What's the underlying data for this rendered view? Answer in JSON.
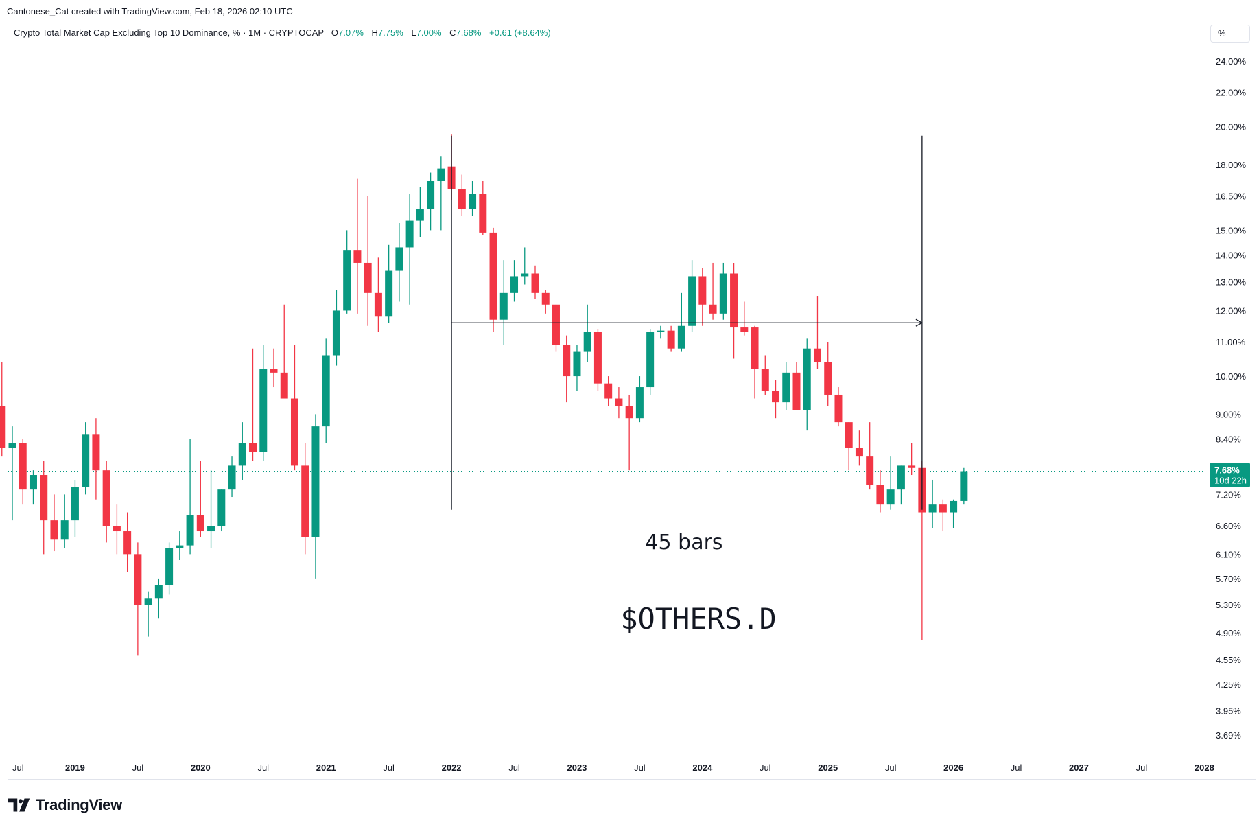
{
  "credit": "Cantonese_Cat created with TradingView.com, Feb 18, 2026 02:10 UTC",
  "legend": {
    "symbol": "Crypto Total Market Cap Excluding Top 10 Dominance, % · 1M · CRYPTOCAP",
    "open_label": "O",
    "open": "7.07%",
    "high_label": "H",
    "high": "7.75%",
    "low_label": "L",
    "low": "7.00%",
    "close_label": "C",
    "close": "7.68%",
    "change": "+0.61 (+8.64%)"
  },
  "unit_badge": "%",
  "brand": "TradingView",
  "colors": {
    "up": "#089981",
    "down": "#F23645",
    "text": "#131722",
    "grid": "#e0e3eb"
  },
  "chart_data": {
    "type": "candlestick",
    "interval": "1M",
    "y_scale": "log",
    "y_ticks": [
      "24.00%",
      "22.00%",
      "20.00%",
      "18.00%",
      "16.50%",
      "15.00%",
      "14.00%",
      "13.00%",
      "12.00%",
      "11.00%",
      "10.00%",
      "9.00%",
      "8.40%",
      "7.80%",
      "7.20%",
      "6.60%",
      "6.10%",
      "5.70%",
      "5.30%",
      "4.90%",
      "4.55%",
      "4.25%",
      "3.95%",
      "3.69%"
    ],
    "x_ticks": [
      {
        "label": "Jul",
        "date": "2018-07"
      },
      {
        "label": "2019",
        "date": "2019-01"
      },
      {
        "label": "Jul",
        "date": "2019-07"
      },
      {
        "label": "2020",
        "date": "2020-01"
      },
      {
        "label": "Jul",
        "date": "2020-07"
      },
      {
        "label": "2021",
        "date": "2021-01"
      },
      {
        "label": "Jul",
        "date": "2021-07"
      },
      {
        "label": "2022",
        "date": "2022-01"
      },
      {
        "label": "Jul",
        "date": "2022-07"
      },
      {
        "label": "2023",
        "date": "2023-01"
      },
      {
        "label": "Jul",
        "date": "2023-07"
      },
      {
        "label": "2024",
        "date": "2024-01"
      },
      {
        "label": "Jul",
        "date": "2024-07"
      },
      {
        "label": "2025",
        "date": "2025-01"
      },
      {
        "label": "Jul",
        "date": "2025-07"
      },
      {
        "label": "2026",
        "date": "2026-01"
      },
      {
        "label": "Jul",
        "date": "2026-07"
      },
      {
        "label": "2027",
        "date": "2027-01"
      },
      {
        "label": "Jul",
        "date": "2027-07"
      },
      {
        "label": "2028",
        "date": "2028-01"
      }
    ],
    "last_price": {
      "value": 7.68,
      "label": "7.68%",
      "countdown": "10d 22h"
    },
    "measure": {
      "from": "2022-01",
      "to": "2025-10",
      "level": 11.6,
      "top": 19.5,
      "bottom": 6.9,
      "label": "45 bars"
    },
    "annotation": "$OTHERS.D",
    "candles": [
      {
        "d": "2018-06",
        "o": 9.2,
        "h": 10.4,
        "l": 8.0,
        "c": 8.2
      },
      {
        "d": "2018-07",
        "o": 8.2,
        "h": 8.7,
        "l": 6.7,
        "c": 8.3
      },
      {
        "d": "2018-08",
        "o": 8.3,
        "h": 8.4,
        "l": 7.0,
        "c": 7.3
      },
      {
        "d": "2018-09",
        "o": 7.3,
        "h": 7.7,
        "l": 7.0,
        "c": 7.6
      },
      {
        "d": "2018-10",
        "o": 7.6,
        "h": 7.9,
        "l": 6.1,
        "c": 6.7
      },
      {
        "d": "2018-11",
        "o": 6.7,
        "h": 7.2,
        "l": 6.15,
        "c": 6.35
      },
      {
        "d": "2018-12",
        "o": 6.35,
        "h": 7.2,
        "l": 6.2,
        "c": 6.7
      },
      {
        "d": "2019-01",
        "o": 6.7,
        "h": 7.5,
        "l": 6.4,
        "c": 7.35
      },
      {
        "d": "2019-02",
        "o": 7.35,
        "h": 8.8,
        "l": 7.2,
        "c": 8.5
      },
      {
        "d": "2019-03",
        "o": 8.5,
        "h": 8.9,
        "l": 7.1,
        "c": 7.7
      },
      {
        "d": "2019-04",
        "o": 7.7,
        "h": 7.9,
        "l": 6.3,
        "c": 6.6
      },
      {
        "d": "2019-05",
        "o": 6.6,
        "h": 7.0,
        "l": 6.1,
        "c": 6.5
      },
      {
        "d": "2019-06",
        "o": 6.5,
        "h": 6.85,
        "l": 5.8,
        "c": 6.1
      },
      {
        "d": "2019-07",
        "o": 6.1,
        "h": 6.3,
        "l": 4.6,
        "c": 5.3
      },
      {
        "d": "2019-08",
        "o": 5.3,
        "h": 5.5,
        "l": 4.85,
        "c": 5.4
      },
      {
        "d": "2019-09",
        "o": 5.4,
        "h": 5.7,
        "l": 5.1,
        "c": 5.6
      },
      {
        "d": "2019-10",
        "o": 5.6,
        "h": 6.3,
        "l": 5.45,
        "c": 6.2
      },
      {
        "d": "2019-11",
        "o": 6.2,
        "h": 6.5,
        "l": 6.0,
        "c": 6.25
      },
      {
        "d": "2019-12",
        "o": 6.25,
        "h": 8.4,
        "l": 6.1,
        "c": 6.8
      },
      {
        "d": "2020-01",
        "o": 6.8,
        "h": 7.9,
        "l": 6.4,
        "c": 6.5
      },
      {
        "d": "2020-02",
        "o": 6.5,
        "h": 7.7,
        "l": 6.2,
        "c": 6.6
      },
      {
        "d": "2020-03",
        "o": 6.6,
        "h": 7.3,
        "l": 6.5,
        "c": 7.3
      },
      {
        "d": "2020-04",
        "o": 7.3,
        "h": 8.0,
        "l": 7.15,
        "c": 7.8
      },
      {
        "d": "2020-05",
        "o": 7.8,
        "h": 8.8,
        "l": 7.5,
        "c": 8.3
      },
      {
        "d": "2020-06",
        "o": 8.3,
        "h": 10.8,
        "l": 7.9,
        "c": 8.1
      },
      {
        "d": "2020-07",
        "o": 8.1,
        "h": 10.9,
        "l": 7.9,
        "c": 10.2
      },
      {
        "d": "2020-08",
        "o": 10.2,
        "h": 10.8,
        "l": 9.7,
        "c": 10.1
      },
      {
        "d": "2020-09",
        "o": 10.1,
        "h": 12.2,
        "l": 9.5,
        "c": 9.4
      },
      {
        "d": "2020-10",
        "o": 9.4,
        "h": 10.9,
        "l": 7.7,
        "c": 7.8
      },
      {
        "d": "2020-11",
        "o": 7.8,
        "h": 8.3,
        "l": 6.1,
        "c": 6.4
      },
      {
        "d": "2020-12",
        "o": 6.4,
        "h": 9.0,
        "l": 5.7,
        "c": 8.7
      },
      {
        "d": "2021-01",
        "o": 8.7,
        "h": 11.1,
        "l": 8.3,
        "c": 10.6
      },
      {
        "d": "2021-02",
        "o": 10.6,
        "h": 12.7,
        "l": 10.3,
        "c": 12.0
      },
      {
        "d": "2021-03",
        "o": 12.0,
        "h": 15.0,
        "l": 11.9,
        "c": 14.2
      },
      {
        "d": "2021-04",
        "o": 14.2,
        "h": 17.3,
        "l": 11.9,
        "c": 13.7
      },
      {
        "d": "2021-05",
        "o": 13.7,
        "h": 16.5,
        "l": 11.5,
        "c": 12.6
      },
      {
        "d": "2021-06",
        "o": 12.6,
        "h": 13.9,
        "l": 11.3,
        "c": 11.8
      },
      {
        "d": "2021-07",
        "o": 11.8,
        "h": 14.4,
        "l": 11.6,
        "c": 13.4
      },
      {
        "d": "2021-08",
        "o": 13.4,
        "h": 15.3,
        "l": 12.3,
        "c": 14.3
      },
      {
        "d": "2021-09",
        "o": 14.3,
        "h": 16.6,
        "l": 12.2,
        "c": 15.4
      },
      {
        "d": "2021-10",
        "o": 15.4,
        "h": 16.9,
        "l": 14.7,
        "c": 15.9
      },
      {
        "d": "2021-11",
        "o": 15.9,
        "h": 17.6,
        "l": 15.0,
        "c": 17.2
      },
      {
        "d": "2021-12",
        "o": 17.2,
        "h": 18.4,
        "l": 15.0,
        "c": 17.8
      },
      {
        "d": "2022-01",
        "o": 17.9,
        "h": 19.6,
        "l": 16.3,
        "c": 16.8
      },
      {
        "d": "2022-02",
        "o": 16.8,
        "h": 17.5,
        "l": 15.6,
        "c": 15.9
      },
      {
        "d": "2022-03",
        "o": 15.9,
        "h": 17.2,
        "l": 15.6,
        "c": 16.6
      },
      {
        "d": "2022-04",
        "o": 16.6,
        "h": 17.2,
        "l": 14.8,
        "c": 14.9
      },
      {
        "d": "2022-05",
        "o": 14.9,
        "h": 15.1,
        "l": 11.3,
        "c": 11.7
      },
      {
        "d": "2022-06",
        "o": 11.7,
        "h": 13.8,
        "l": 10.9,
        "c": 12.6
      },
      {
        "d": "2022-07",
        "o": 12.6,
        "h": 13.8,
        "l": 12.3,
        "c": 13.2
      },
      {
        "d": "2022-08",
        "o": 13.2,
        "h": 14.3,
        "l": 12.9,
        "c": 13.3
      },
      {
        "d": "2022-09",
        "o": 13.3,
        "h": 13.6,
        "l": 12.4,
        "c": 12.6
      },
      {
        "d": "2022-10",
        "o": 12.6,
        "h": 12.7,
        "l": 11.9,
        "c": 12.2
      },
      {
        "d": "2022-11",
        "o": 12.2,
        "h": 12.2,
        "l": 10.7,
        "c": 10.9
      },
      {
        "d": "2022-12",
        "o": 10.9,
        "h": 11.2,
        "l": 9.3,
        "c": 10.0
      },
      {
        "d": "2023-01",
        "o": 10.0,
        "h": 10.9,
        "l": 9.6,
        "c": 10.7
      },
      {
        "d": "2023-02",
        "o": 10.7,
        "h": 12.2,
        "l": 10.4,
        "c": 11.3
      },
      {
        "d": "2023-03",
        "o": 11.3,
        "h": 11.4,
        "l": 9.6,
        "c": 9.8
      },
      {
        "d": "2023-04",
        "o": 9.8,
        "h": 10.0,
        "l": 9.2,
        "c": 9.4
      },
      {
        "d": "2023-05",
        "o": 9.4,
        "h": 9.7,
        "l": 8.9,
        "c": 9.2
      },
      {
        "d": "2023-06",
        "o": 9.2,
        "h": 9.5,
        "l": 7.7,
        "c": 8.9
      },
      {
        "d": "2023-07",
        "o": 8.9,
        "h": 10.0,
        "l": 8.8,
        "c": 9.7
      },
      {
        "d": "2023-08",
        "o": 9.7,
        "h": 11.4,
        "l": 9.5,
        "c": 11.3
      },
      {
        "d": "2023-09",
        "o": 11.3,
        "h": 11.5,
        "l": 11.1,
        "c": 11.35
      },
      {
        "d": "2023-10",
        "o": 11.35,
        "h": 11.5,
        "l": 10.7,
        "c": 10.8
      },
      {
        "d": "2023-11",
        "o": 10.8,
        "h": 12.6,
        "l": 10.7,
        "c": 11.5
      },
      {
        "d": "2023-12",
        "o": 11.5,
        "h": 13.8,
        "l": 11.3,
        "c": 13.2
      },
      {
        "d": "2024-01",
        "o": 13.2,
        "h": 13.5,
        "l": 11.5,
        "c": 12.2
      },
      {
        "d": "2024-02",
        "o": 12.2,
        "h": 13.7,
        "l": 11.7,
        "c": 11.9
      },
      {
        "d": "2024-03",
        "o": 11.9,
        "h": 13.7,
        "l": 11.7,
        "c": 13.3
      },
      {
        "d": "2024-04",
        "o": 13.3,
        "h": 13.7,
        "l": 10.5,
        "c": 11.45
      },
      {
        "d": "2024-05",
        "o": 11.45,
        "h": 12.3,
        "l": 11.2,
        "c": 11.3
      },
      {
        "d": "2024-06",
        "o": 11.45,
        "h": 11.5,
        "l": 9.4,
        "c": 10.2
      },
      {
        "d": "2024-07",
        "o": 10.2,
        "h": 10.6,
        "l": 9.5,
        "c": 9.6
      },
      {
        "d": "2024-08",
        "o": 9.6,
        "h": 9.9,
        "l": 8.9,
        "c": 9.3
      },
      {
        "d": "2024-09",
        "o": 9.3,
        "h": 10.4,
        "l": 9.1,
        "c": 10.1
      },
      {
        "d": "2024-10",
        "o": 10.1,
        "h": 10.4,
        "l": 9.2,
        "c": 9.1
      },
      {
        "d": "2024-11",
        "o": 9.1,
        "h": 11.1,
        "l": 8.6,
        "c": 10.8
      },
      {
        "d": "2024-12",
        "o": 10.8,
        "h": 12.5,
        "l": 10.2,
        "c": 10.4
      },
      {
        "d": "2025-01",
        "o": 10.4,
        "h": 11.0,
        "l": 9.2,
        "c": 9.5
      },
      {
        "d": "2025-02",
        "o": 9.5,
        "h": 9.7,
        "l": 8.7,
        "c": 8.8
      },
      {
        "d": "2025-03",
        "o": 8.8,
        "h": 8.8,
        "l": 7.7,
        "c": 8.2
      },
      {
        "d": "2025-04",
        "o": 8.2,
        "h": 8.6,
        "l": 7.8,
        "c": 8.0
      },
      {
        "d": "2025-05",
        "o": 8.0,
        "h": 8.8,
        "l": 7.3,
        "c": 7.4
      },
      {
        "d": "2025-06",
        "o": 7.4,
        "h": 7.7,
        "l": 6.85,
        "c": 7.0
      },
      {
        "d": "2025-07",
        "o": 7.0,
        "h": 8.0,
        "l": 6.9,
        "c": 7.3
      },
      {
        "d": "2025-08",
        "o": 7.3,
        "h": 7.8,
        "l": 7.0,
        "c": 7.8
      },
      {
        "d": "2025-09",
        "o": 7.8,
        "h": 8.3,
        "l": 7.6,
        "c": 7.75
      },
      {
        "d": "2025-10",
        "o": 7.75,
        "h": 7.9,
        "l": 4.8,
        "c": 6.85
      },
      {
        "d": "2025-11",
        "o": 6.85,
        "h": 7.5,
        "l": 6.55,
        "c": 7.0
      },
      {
        "d": "2025-12",
        "o": 7.0,
        "h": 7.1,
        "l": 6.5,
        "c": 6.85
      },
      {
        "d": "2026-01",
        "o": 6.85,
        "h": 7.1,
        "l": 6.55,
        "c": 7.07
      },
      {
        "d": "2026-02",
        "o": 7.07,
        "h": 7.75,
        "l": 7.0,
        "c": 7.68
      }
    ]
  }
}
